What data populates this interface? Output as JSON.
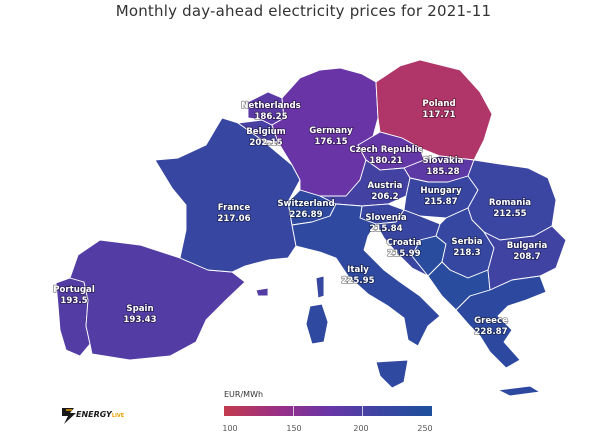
{
  "title": "Monthly day-ahead electricity prices for 2021-11",
  "colors": {
    "low": "#c23b4e",
    "mid_low": "#9b2f84",
    "mid": "#6a35a6",
    "mid_high": "#3b45a2",
    "high": "#1c4f9c",
    "background": "#ffffff"
  },
  "color_scale": {
    "min": 100,
    "max": 250
  },
  "legend": {
    "title": "EUR/MWh",
    "ticks": [
      "100",
      "150",
      "200",
      "250"
    ]
  },
  "countries": [
    {
      "id": "poland",
      "name": "Poland",
      "value": "117.71"
    },
    {
      "id": "germany",
      "name": "Germany",
      "value": "176.15"
    },
    {
      "id": "czech",
      "name": "Czech Republic",
      "value": "180.21"
    },
    {
      "id": "slovakia",
      "name": "Slovakia",
      "value": "185.28"
    },
    {
      "id": "netherlands",
      "name": "Netherlands",
      "value": "186.25"
    },
    {
      "id": "belgium",
      "name": "Belgium",
      "value": "202.15"
    },
    {
      "id": "france",
      "name": "France",
      "value": "217.06"
    },
    {
      "id": "switzerland",
      "name": "Switzerland",
      "value": "226.89"
    },
    {
      "id": "austria",
      "name": "Austria",
      "value": "206.2"
    },
    {
      "id": "hungary",
      "name": "Hungary",
      "value": "215.87"
    },
    {
      "id": "romania",
      "name": "Romania",
      "value": "212.55"
    },
    {
      "id": "slovenia",
      "name": "Slovenia",
      "value": "215.84"
    },
    {
      "id": "croatia",
      "name": "Croatia",
      "value": "215.99"
    },
    {
      "id": "serbia",
      "name": "Serbia",
      "value": "218.3"
    },
    {
      "id": "bulgaria",
      "name": "Bulgaria",
      "value": "208.7"
    },
    {
      "id": "italy",
      "name": "Italy",
      "value": "225.95"
    },
    {
      "id": "greece",
      "name": "Greece",
      "value": "228.87"
    },
    {
      "id": "portugal",
      "name": "Portugal",
      "value": "193.5"
    },
    {
      "id": "spain",
      "name": "Spain",
      "value": "193.43"
    }
  ],
  "logo": {
    "text": "ENERGY",
    "sub": "LIVE"
  }
}
